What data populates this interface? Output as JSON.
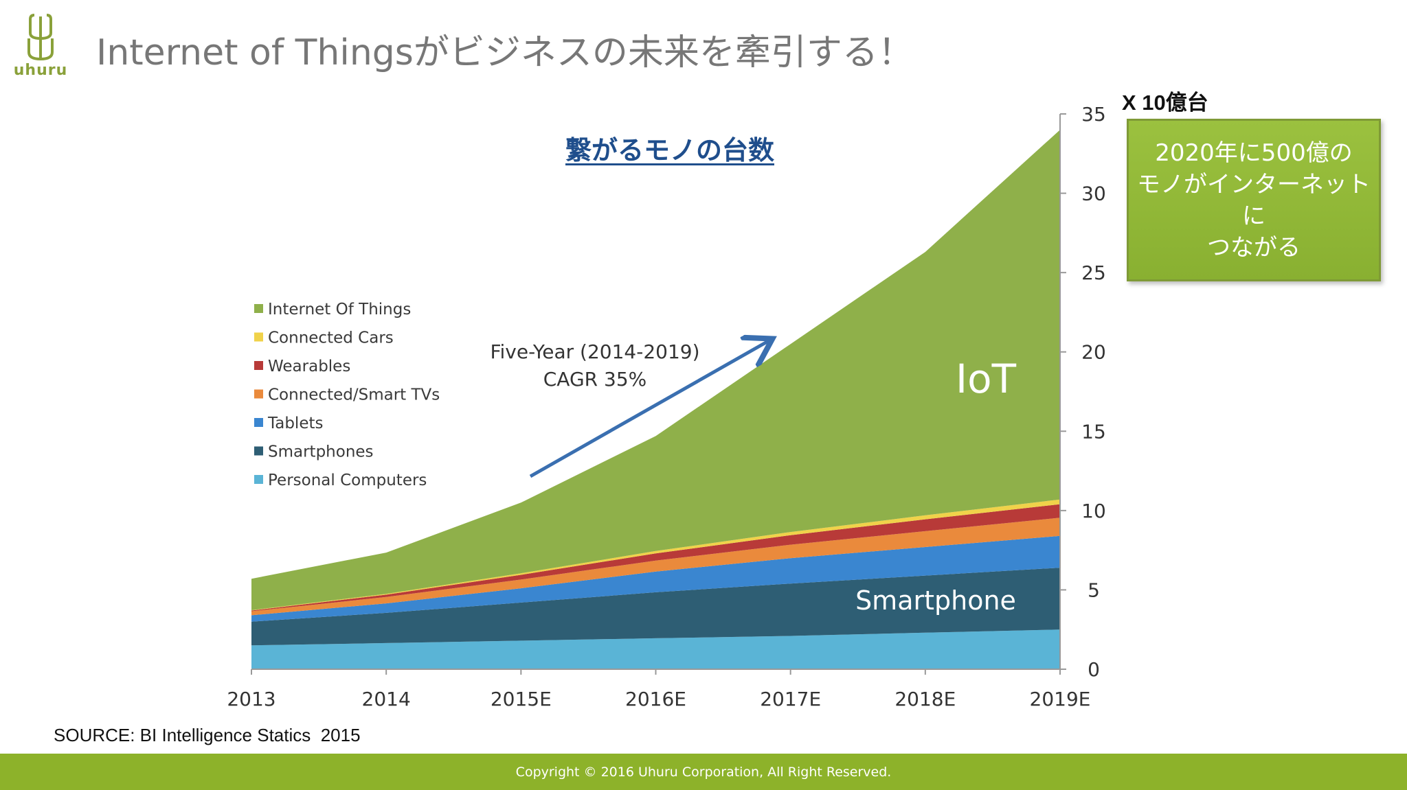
{
  "logo": {
    "text": "uhuru"
  },
  "slide": {
    "title": "Internet of Thingsがビジネスの未来を牽引する！",
    "unit_label": "X 10億台",
    "callout": "2020年に500億の\nモノがインターネットに\nつながる",
    "source": "SOURCE: BI Intelligence Statics  2015",
    "footer": "Copyright © 2016 Uhuru Corporation, All Right Reserved."
  },
  "chart_data": {
    "type": "area",
    "stacked": true,
    "title": "繋がるモノの台数",
    "categories": [
      "2013",
      "2014",
      "2015E",
      "2016E",
      "2017E",
      "2018E",
      "2019E"
    ],
    "ylim": [
      0,
      35
    ],
    "yticks": [
      "0",
      "5",
      "10",
      "15",
      "20",
      "25",
      "30",
      "35"
    ],
    "y_axis_side": "right",
    "legend_position": "left",
    "series": [
      {
        "name": "Personal Computers",
        "color": "#5ab4d6",
        "values": [
          1.5,
          1.65,
          1.8,
          1.95,
          2.1,
          2.3,
          2.5
        ]
      },
      {
        "name": "Smartphones",
        "color": "#2e5e74",
        "values": [
          1.5,
          1.9,
          2.4,
          2.9,
          3.3,
          3.6,
          3.9
        ]
      },
      {
        "name": "Tablets",
        "color": "#3a86d0",
        "values": [
          0.4,
          0.6,
          0.9,
          1.3,
          1.6,
          1.8,
          2.0
        ]
      },
      {
        "name": "Connected/Smart TVs",
        "color": "#ea8a3c",
        "values": [
          0.25,
          0.4,
          0.55,
          0.7,
          0.85,
          1.0,
          1.15
        ]
      },
      {
        "name": "Wearables",
        "color": "#b83a38",
        "values": [
          0.05,
          0.15,
          0.3,
          0.45,
          0.6,
          0.75,
          0.85
        ]
      },
      {
        "name": "Connected Cars",
        "color": "#f0d24a",
        "values": [
          0.02,
          0.05,
          0.1,
          0.15,
          0.2,
          0.25,
          0.3
        ]
      },
      {
        "name": "Internet Of Things",
        "color": "#8fb04a",
        "values": [
          1.98,
          2.6,
          4.45,
          7.25,
          11.85,
          16.6,
          23.3
        ]
      }
    ],
    "annotations": {
      "growth_line1": "Five-Year (2014-2019)",
      "growth_line2": "CAGR 35%",
      "iot_label": "IoT",
      "smartphone_label": "Smartphone"
    }
  }
}
